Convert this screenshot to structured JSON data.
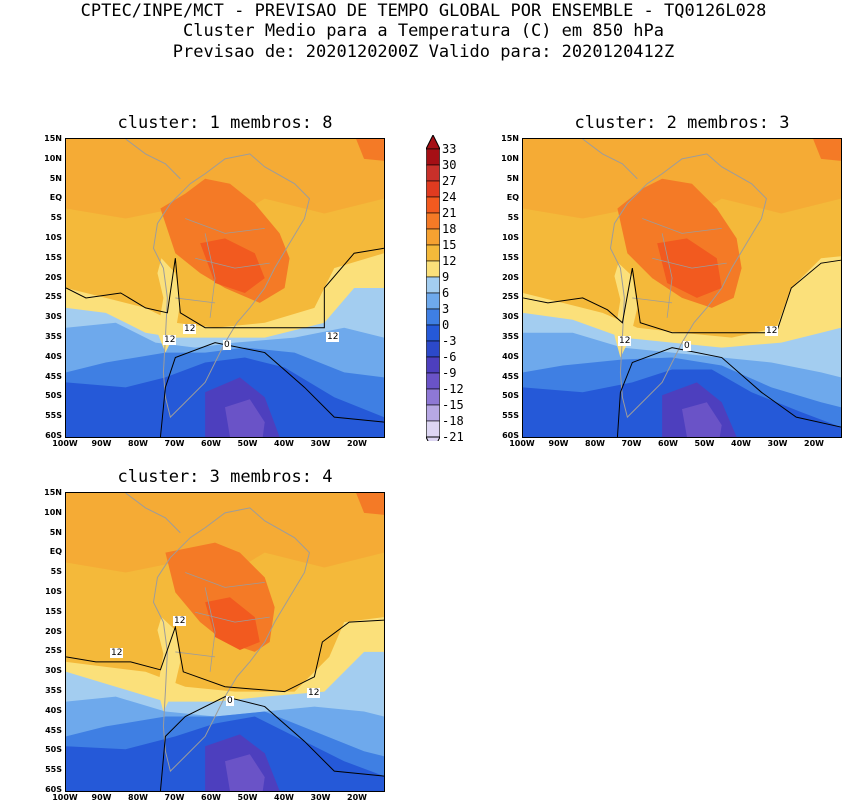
{
  "header": {
    "line1": "CPTEC/INPE/MCT - PREVISAO DE TEMPO GLOBAL POR ENSEMBLE - TQ0126L028",
    "line2": "Cluster Medio para a Temperatura (C) em 850 hPa",
    "line3": "Previsao de: 2020120200Z   Valido para: 2020120412Z"
  },
  "panels": [
    {
      "title": "cluster: 1   membros: 8"
    },
    {
      "title": "cluster: 2   membros: 3"
    },
    {
      "title": "cluster: 3   membros: 4"
    }
  ],
  "axes": {
    "lat_labels": [
      "15N",
      "10N",
      "5N",
      "EQ",
      "5S",
      "10S",
      "15S",
      "20S",
      "25S",
      "30S",
      "35S",
      "40S",
      "45S",
      "50S",
      "55S",
      "60S"
    ],
    "lon_labels": [
      "100W",
      "90W",
      "80W",
      "70W",
      "60W",
      "50W",
      "40W",
      "30W",
      "20W"
    ]
  },
  "contour_labels": {
    "twelve": "12",
    "zero": "0"
  },
  "colorbar": {
    "labels": [
      "33",
      "30",
      "27",
      "24",
      "21",
      "18",
      "15",
      "12",
      "9",
      "6",
      "3",
      "0",
      "-3",
      "-6",
      "-9",
      "-12",
      "-15",
      "-18",
      "-21"
    ],
    "colors": [
      "#a50f15",
      "#c8302a",
      "#e03b20",
      "#f25a1f",
      "#f47a26",
      "#f5a131",
      "#f4b93a",
      "#fbe07a",
      "#a3cdf0",
      "#6ea9ec",
      "#3f7fe3",
      "#2559d8",
      "#2c49c9",
      "#4d3fbe",
      "#6a53c7",
      "#8e78d5",
      "#b7a8e4",
      "#ddd6f3"
    ]
  }
}
